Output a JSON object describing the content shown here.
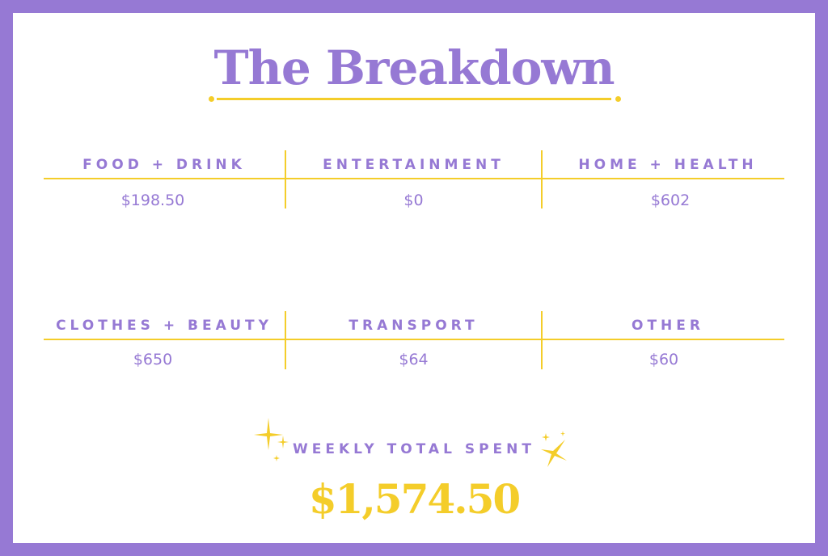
{
  "title": "The Breakdown",
  "colors": {
    "purple": "#9679d4",
    "yellow": "#f4cd2a"
  },
  "categories": [
    {
      "label": "FOOD + DRINK",
      "amount": "$198.50"
    },
    {
      "label": "ENTERTAINMENT",
      "amount": "$0"
    },
    {
      "label": "HOME + HEALTH",
      "amount": "$602"
    },
    {
      "label": "CLOTHES + BEAUTY",
      "amount": "$650"
    },
    {
      "label": "TRANSPORT",
      "amount": "$64"
    },
    {
      "label": "OTHER",
      "amount": "$60"
    }
  ],
  "total": {
    "label": "WEEKLY TOTAL SPENT",
    "amount": "$1,574.50",
    "icon": "sparkle-icon"
  }
}
